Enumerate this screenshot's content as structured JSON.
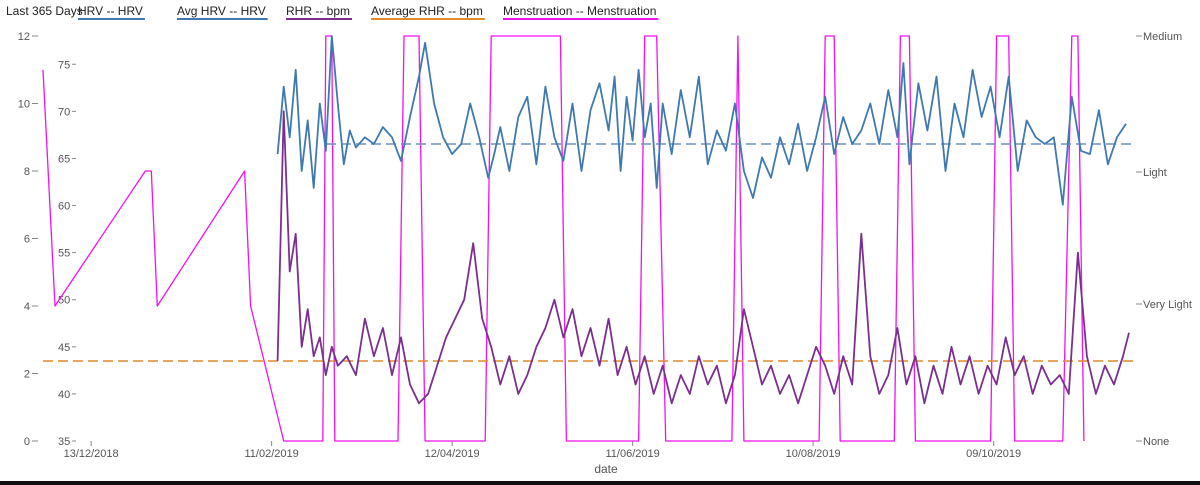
{
  "chart_data": {
    "type": "line",
    "range_label": "Last 365 Days",
    "xlabel": "date",
    "legend": [
      {
        "label": "HRV  -- HRV",
        "color": "#3f79b0"
      },
      {
        "label": "Avg HRV  -- HRV",
        "color": "#3f79b0"
      },
      {
        "label": "RHR  -- bpm",
        "color": "#7b2f8e"
      },
      {
        "label": "Average RHR  -- bpm",
        "color": "#e08a2a"
      },
      {
        "label": "Menstruation  -- Menstruation",
        "color": "#ee12ee"
      }
    ],
    "x_axis": {
      "start": "2018-11-27",
      "end": "2019-11-24",
      "ticks": [
        "13/12/2018",
        "11/02/2019",
        "12/04/2019",
        "11/06/2019",
        "10/08/2019",
        "09/10/2019"
      ]
    },
    "left_outer_axis": {
      "range": [
        0,
        12
      ],
      "ticks": [
        "0",
        "2",
        "4",
        "6",
        "8",
        "10",
        "12"
      ]
    },
    "left_inner_axis": {
      "range": [
        35,
        78
      ],
      "ticks": [
        "35",
        "40",
        "45",
        "50",
        "55",
        "60",
        "65",
        "70",
        "75"
      ]
    },
    "right_axis": {
      "ticks": [
        "None",
        "Very Light",
        "Light",
        "Medium"
      ]
    },
    "avg_hrv": 8.8,
    "avg_rhr": 43.5,
    "colors": {
      "hrv": "#3f79b0",
      "avg_hrv": "#6f91c0",
      "rhr": "#7b2f8e",
      "avg_rhr": "#e08a2a",
      "menstruation": "#ee12ee"
    },
    "hrv": [
      [
        "2019-02-13",
        8.5
      ],
      [
        "2019-02-15",
        10.5
      ],
      [
        "2019-02-17",
        9.0
      ],
      [
        "2019-02-19",
        11.0
      ],
      [
        "2019-02-21",
        8.0
      ],
      [
        "2019-02-23",
        9.5
      ],
      [
        "2019-02-25",
        7.5
      ],
      [
        "2019-02-27",
        10.0
      ],
      [
        "2019-03-01",
        8.6
      ],
      [
        "2019-03-03",
        12.0
      ],
      [
        "2019-03-05",
        10.0
      ],
      [
        "2019-03-07",
        8.2
      ],
      [
        "2019-03-09",
        9.2
      ],
      [
        "2019-03-11",
        8.7
      ],
      [
        "2019-03-14",
        9.0
      ],
      [
        "2019-03-17",
        8.8
      ],
      [
        "2019-03-20",
        9.3
      ],
      [
        "2019-03-23",
        9.0
      ],
      [
        "2019-03-26",
        8.3
      ],
      [
        "2019-03-29",
        9.6
      ],
      [
        "2019-04-01",
        10.8
      ],
      [
        "2019-04-03",
        11.8
      ],
      [
        "2019-04-06",
        10.0
      ],
      [
        "2019-04-09",
        9.0
      ],
      [
        "2019-04-12",
        8.5
      ],
      [
        "2019-04-15",
        8.8
      ],
      [
        "2019-04-18",
        10.0
      ],
      [
        "2019-04-21",
        9.0
      ],
      [
        "2019-04-24",
        7.8
      ],
      [
        "2019-04-26",
        8.5
      ],
      [
        "2019-04-28",
        9.3
      ],
      [
        "2019-05-01",
        8.0
      ],
      [
        "2019-05-04",
        9.6
      ],
      [
        "2019-05-07",
        10.2
      ],
      [
        "2019-05-10",
        8.2
      ],
      [
        "2019-05-13",
        10.5
      ],
      [
        "2019-05-16",
        9.0
      ],
      [
        "2019-05-19",
        8.3
      ],
      [
        "2019-05-22",
        10.0
      ],
      [
        "2019-05-25",
        8.0
      ],
      [
        "2019-05-28",
        9.8
      ],
      [
        "2019-05-31",
        10.6
      ],
      [
        "2019-06-03",
        9.2
      ],
      [
        "2019-06-05",
        10.8
      ],
      [
        "2019-06-07",
        8.0
      ],
      [
        "2019-06-09",
        10.2
      ],
      [
        "2019-06-11",
        8.9
      ],
      [
        "2019-06-13",
        11.0
      ],
      [
        "2019-06-15",
        9.0
      ],
      [
        "2019-06-17",
        10.0
      ],
      [
        "2019-06-19",
        7.5
      ],
      [
        "2019-06-21",
        10.0
      ],
      [
        "2019-06-24",
        8.5
      ],
      [
        "2019-06-27",
        10.4
      ],
      [
        "2019-06-30",
        9.0
      ],
      [
        "2019-07-03",
        10.8
      ],
      [
        "2019-07-06",
        8.2
      ],
      [
        "2019-07-09",
        9.2
      ],
      [
        "2019-07-12",
        8.6
      ],
      [
        "2019-07-15",
        10.0
      ],
      [
        "2019-07-18",
        8.0
      ],
      [
        "2019-07-21",
        7.2
      ],
      [
        "2019-07-24",
        8.4
      ],
      [
        "2019-07-27",
        7.8
      ],
      [
        "2019-07-30",
        9.0
      ],
      [
        "2019-08-02",
        8.2
      ],
      [
        "2019-08-05",
        9.4
      ],
      [
        "2019-08-08",
        8.0
      ],
      [
        "2019-08-11",
        9.0
      ],
      [
        "2019-08-14",
        10.2
      ],
      [
        "2019-08-17",
        8.5
      ],
      [
        "2019-08-20",
        9.6
      ],
      [
        "2019-08-23",
        8.8
      ],
      [
        "2019-08-26",
        9.2
      ],
      [
        "2019-08-29",
        10.0
      ],
      [
        "2019-09-01",
        8.8
      ],
      [
        "2019-09-04",
        10.4
      ],
      [
        "2019-09-07",
        9.0
      ],
      [
        "2019-09-09",
        11.2
      ],
      [
        "2019-09-11",
        8.2
      ],
      [
        "2019-09-14",
        10.6
      ],
      [
        "2019-09-17",
        9.2
      ],
      [
        "2019-09-20",
        10.8
      ],
      [
        "2019-09-23",
        8.0
      ],
      [
        "2019-09-26",
        10.0
      ],
      [
        "2019-09-29",
        9.0
      ],
      [
        "2019-10-02",
        11.0
      ],
      [
        "2019-10-05",
        9.6
      ],
      [
        "2019-10-08",
        10.5
      ],
      [
        "2019-10-11",
        9.0
      ],
      [
        "2019-10-14",
        10.8
      ],
      [
        "2019-10-17",
        8.0
      ],
      [
        "2019-10-20",
        9.5
      ],
      [
        "2019-10-23",
        9.0
      ],
      [
        "2019-10-26",
        8.8
      ],
      [
        "2019-10-29",
        9.0
      ],
      [
        "2019-11-01",
        7.0
      ],
      [
        "2019-11-04",
        10.2
      ],
      [
        "2019-11-07",
        8.6
      ],
      [
        "2019-11-10",
        8.5
      ],
      [
        "2019-11-13",
        9.8
      ],
      [
        "2019-11-16",
        8.2
      ],
      [
        "2019-11-19",
        9.0
      ],
      [
        "2019-11-22",
        9.4
      ]
    ],
    "rhr": [
      [
        "2019-02-13",
        43.5
      ],
      [
        "2019-02-15",
        70.0
      ],
      [
        "2019-02-17",
        53.0
      ],
      [
        "2019-02-19",
        57.0
      ],
      [
        "2019-02-21",
        45.0
      ],
      [
        "2019-02-23",
        49.0
      ],
      [
        "2019-02-25",
        44.0
      ],
      [
        "2019-02-27",
        46.0
      ],
      [
        "2019-03-01",
        42.0
      ],
      [
        "2019-03-03",
        45.0
      ],
      [
        "2019-03-05",
        43.0
      ],
      [
        "2019-03-08",
        44.0
      ],
      [
        "2019-03-11",
        42.0
      ],
      [
        "2019-03-14",
        48.0
      ],
      [
        "2019-03-17",
        44.0
      ],
      [
        "2019-03-20",
        47.0
      ],
      [
        "2019-03-23",
        42.0
      ],
      [
        "2019-03-26",
        46.0
      ],
      [
        "2019-03-29",
        41.0
      ],
      [
        "2019-04-01",
        39.0
      ],
      [
        "2019-04-04",
        40.0
      ],
      [
        "2019-04-07",
        43.0
      ],
      [
        "2019-04-10",
        46.0
      ],
      [
        "2019-04-13",
        48.0
      ],
      [
        "2019-04-16",
        50.0
      ],
      [
        "2019-04-19",
        56.0
      ],
      [
        "2019-04-22",
        48.0
      ],
      [
        "2019-04-25",
        45.0
      ],
      [
        "2019-04-28",
        41.0
      ],
      [
        "2019-05-01",
        44.0
      ],
      [
        "2019-05-04",
        40.0
      ],
      [
        "2019-05-07",
        42.0
      ],
      [
        "2019-05-10",
        45.0
      ],
      [
        "2019-05-13",
        47.0
      ],
      [
        "2019-05-16",
        50.0
      ],
      [
        "2019-05-19",
        46.0
      ],
      [
        "2019-05-22",
        49.0
      ],
      [
        "2019-05-25",
        44.0
      ],
      [
        "2019-05-28",
        47.0
      ],
      [
        "2019-05-31",
        43.0
      ],
      [
        "2019-06-03",
        48.0
      ],
      [
        "2019-06-06",
        42.0
      ],
      [
        "2019-06-09",
        45.0
      ],
      [
        "2019-06-12",
        41.0
      ],
      [
        "2019-06-15",
        44.0
      ],
      [
        "2019-06-18",
        40.0
      ],
      [
        "2019-06-21",
        43.0
      ],
      [
        "2019-06-24",
        39.0
      ],
      [
        "2019-06-27",
        42.0
      ],
      [
        "2019-06-30",
        40.0
      ],
      [
        "2019-07-03",
        44.0
      ],
      [
        "2019-07-06",
        41.0
      ],
      [
        "2019-07-09",
        43.0
      ],
      [
        "2019-07-12",
        39.0
      ],
      [
        "2019-07-15",
        42.0
      ],
      [
        "2019-07-18",
        49.0
      ],
      [
        "2019-07-21",
        45.0
      ],
      [
        "2019-07-24",
        41.0
      ],
      [
        "2019-07-27",
        43.0
      ],
      [
        "2019-07-30",
        40.0
      ],
      [
        "2019-08-02",
        42.0
      ],
      [
        "2019-08-05",
        39.0
      ],
      [
        "2019-08-08",
        42.0
      ],
      [
        "2019-08-11",
        45.0
      ],
      [
        "2019-08-14",
        43.0
      ],
      [
        "2019-08-17",
        40.0
      ],
      [
        "2019-08-20",
        44.0
      ],
      [
        "2019-08-23",
        41.0
      ],
      [
        "2019-08-26",
        57.0
      ],
      [
        "2019-08-29",
        44.0
      ],
      [
        "2019-09-01",
        40.0
      ],
      [
        "2019-09-04",
        42.0
      ],
      [
        "2019-09-07",
        47.0
      ],
      [
        "2019-09-10",
        41.0
      ],
      [
        "2019-09-13",
        44.0
      ],
      [
        "2019-09-16",
        39.0
      ],
      [
        "2019-09-19",
        43.0
      ],
      [
        "2019-09-22",
        40.0
      ],
      [
        "2019-09-25",
        45.0
      ],
      [
        "2019-09-28",
        41.0
      ],
      [
        "2019-10-01",
        44.0
      ],
      [
        "2019-10-04",
        40.0
      ],
      [
        "2019-10-07",
        43.0
      ],
      [
        "2019-10-10",
        41.0
      ],
      [
        "2019-10-13",
        46.0
      ],
      [
        "2019-10-16",
        42.0
      ],
      [
        "2019-10-19",
        44.0
      ],
      [
        "2019-10-22",
        40.0
      ],
      [
        "2019-10-25",
        43.0
      ],
      [
        "2019-10-28",
        41.0
      ],
      [
        "2019-10-31",
        42.0
      ],
      [
        "2019-11-03",
        40.0
      ],
      [
        "2019-11-06",
        55.0
      ],
      [
        "2019-11-09",
        44.0
      ],
      [
        "2019-11-12",
        40.0
      ],
      [
        "2019-11-15",
        43.0
      ],
      [
        "2019-11-18",
        41.0
      ],
      [
        "2019-11-21",
        44.0
      ],
      [
        "2019-11-23",
        46.5
      ]
    ],
    "menstruation": [
      [
        "2018-11-27",
        11.0
      ],
      [
        "2018-12-01",
        4.0
      ],
      [
        "2018-12-31",
        8.0
      ],
      [
        "2019-01-02",
        8.0
      ],
      [
        "2019-01-04",
        4.0
      ],
      [
        "2019-02-02",
        8.0
      ],
      [
        "2019-02-04",
        4.0
      ],
      [
        "2019-02-15",
        0.0
      ],
      [
        "2019-02-28",
        0.0
      ],
      [
        "2019-03-01",
        12.0
      ],
      [
        "2019-03-03",
        12.0
      ],
      [
        "2019-03-04",
        0.0
      ],
      [
        "2019-03-25",
        0.0
      ],
      [
        "2019-03-27",
        12.0
      ],
      [
        "2019-04-01",
        12.0
      ],
      [
        "2019-04-03",
        0.0
      ],
      [
        "2019-04-23",
        0.0
      ],
      [
        "2019-04-25",
        12.0
      ],
      [
        "2019-05-18",
        12.0
      ],
      [
        "2019-05-20",
        0.0
      ],
      [
        "2019-06-13",
        0.0
      ],
      [
        "2019-06-15",
        12.0
      ],
      [
        "2019-06-19",
        12.0
      ],
      [
        "2019-06-22",
        0.0
      ],
      [
        "2019-07-14",
        0.0
      ],
      [
        "2019-07-16",
        12.0
      ],
      [
        "2019-07-18",
        0.0
      ],
      [
        "2019-08-12",
        0.0
      ],
      [
        "2019-08-14",
        12.0
      ],
      [
        "2019-08-17",
        12.0
      ],
      [
        "2019-08-19",
        0.0
      ],
      [
        "2019-09-06",
        0.0
      ],
      [
        "2019-09-08",
        12.0
      ],
      [
        "2019-09-11",
        12.0
      ],
      [
        "2019-09-13",
        0.0
      ],
      [
        "2019-10-08",
        0.0
      ],
      [
        "2019-10-10",
        12.0
      ],
      [
        "2019-10-14",
        12.0
      ],
      [
        "2019-10-16",
        0.0
      ],
      [
        "2019-11-01",
        0.0
      ],
      [
        "2019-11-04",
        12.0
      ],
      [
        "2019-11-06",
        12.0
      ],
      [
        "2019-11-08",
        0.0
      ]
    ]
  }
}
